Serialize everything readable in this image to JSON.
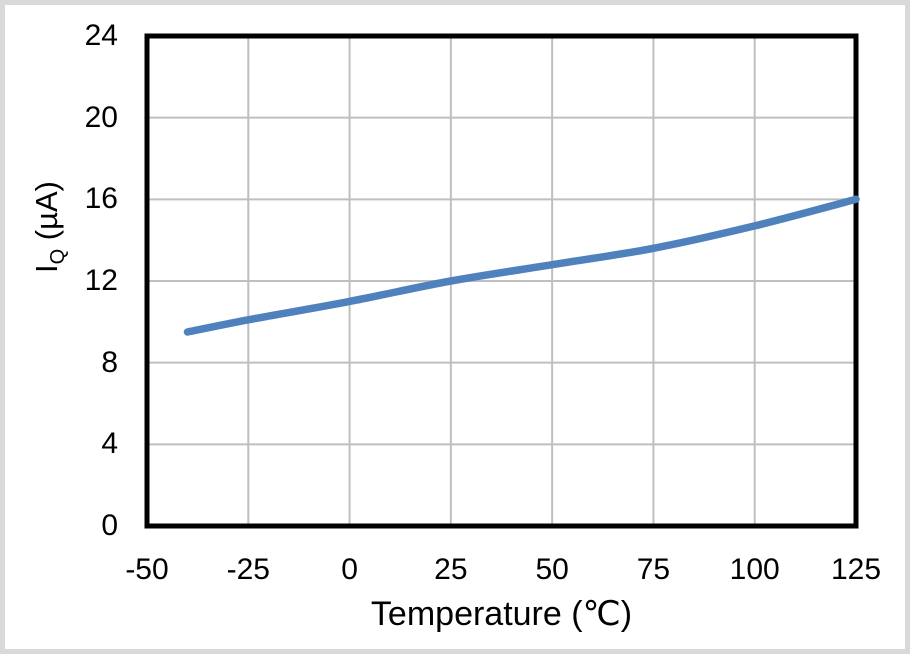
{
  "chart_data": {
    "type": "line",
    "title": "",
    "xlabel": "Temperature (℃)",
    "ylabel": "IQ (µA)",
    "ylabel_parts": {
      "base": "I",
      "sub": "Q",
      "rest": " (µA)"
    },
    "xlim": [
      -50,
      125
    ],
    "ylim": [
      0,
      24
    ],
    "x_ticks": [
      -50,
      -25,
      0,
      25,
      50,
      75,
      100,
      125
    ],
    "y_ticks": [
      0,
      4,
      8,
      12,
      16,
      20,
      24
    ],
    "grid": true,
    "legend": "none",
    "series": [
      {
        "name": "IQ",
        "color": "#4F81BD",
        "x": [
          -40,
          -25,
          0,
          25,
          50,
          75,
          100,
          125
        ],
        "y": [
          9.5,
          10.1,
          11.0,
          12.0,
          12.8,
          13.6,
          14.7,
          16.0
        ]
      }
    ]
  },
  "colors": {
    "background": "#FFFFFF",
    "frame": "#D9D9D9",
    "axis": "#000000",
    "gridline": "#BFBFBF",
    "text": "#000000",
    "line": "#4F81BD"
  }
}
